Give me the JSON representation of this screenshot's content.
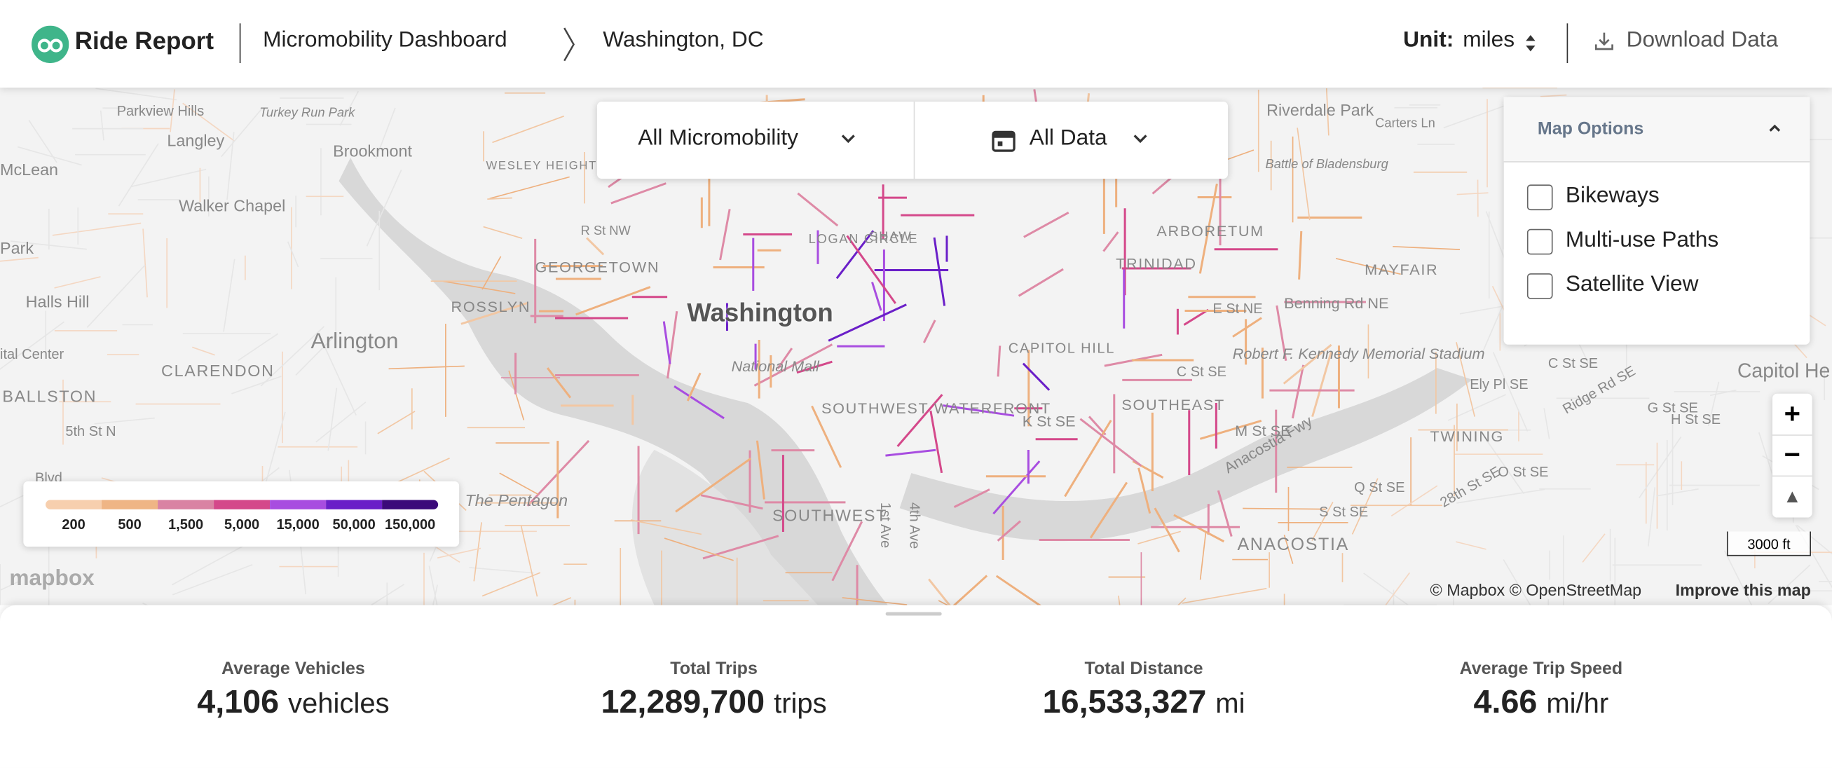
{
  "header": {
    "brand": "Ride Report",
    "crumbs": [
      "Micromobility Dashboard",
      "Washington, DC"
    ],
    "unit_label": "Unit:",
    "unit_value": "miles",
    "download": "Download Data"
  },
  "filters": [
    "All Micromobility",
    "All Data"
  ],
  "map_options": {
    "title": "Map Options",
    "options": [
      "Bikeways",
      "Multi-use Paths",
      "Satellite View"
    ]
  },
  "legend": {
    "colors": [
      "#f7cfae",
      "#efb585",
      "#d983a3",
      "#d4488a",
      "#a84de0",
      "#6a1fc8",
      "#3b0a7a"
    ],
    "labels": [
      "200",
      "500",
      "1,500",
      "5,000",
      "15,000",
      "50,000",
      "150,000"
    ]
  },
  "map_labels": [
    "Parkview Hills",
    "Turkey Run Park",
    "Langley",
    "McLean",
    "Brookmont",
    "Walker Chapel",
    "Park",
    "Halls Hill",
    "Arlington",
    "CLARENDON",
    "BALLSTON",
    "5th St N",
    "Blvd",
    "ital Center",
    "The Pentagon",
    "WESLEY HEIGHTS",
    "GEORGETOWN",
    "ROSSLYN",
    "R St NW",
    "LOGAN CIRCLE",
    "SHAW",
    "Washington",
    "National Mall",
    "SOUTHWEST WATERFRONT",
    "SOUTHWEST",
    "1st Ave",
    "4th Ave",
    "CAPITOL HILL",
    "SOUTHEAST",
    "K St SE",
    "C St SE",
    "E St NE",
    "TRINIDAD",
    "ARBORETUM",
    "Riverdale Park",
    "Carters Ln",
    "Battle of Bladensburg",
    "MAYFAIR",
    "Benning Rd NE",
    "Robert F. Kennedy Memorial Stadium",
    "M St SE",
    "Anacostia Fwy",
    "ANACOSTIA",
    "Q St SE",
    "S St SE",
    "28th St SE",
    "O St SE",
    "TWINING",
    "Ely Pl SE",
    "G St SE",
    "H St SE",
    "Ridge Rd SE",
    "Capitol He",
    "C St SE"
  ],
  "map_controls": {
    "scale": "3000 ft",
    "attribution": "© Mapbox © OpenStreetMap",
    "improve": "Improve this map",
    "logo": "mapbox"
  },
  "stats": [
    {
      "label": "Average Vehicles",
      "value": "4,106",
      "unit": "vehicles"
    },
    {
      "label": "Total Trips",
      "value": "12,289,700",
      "unit": "trips"
    },
    {
      "label": "Total Distance",
      "value": "16,533,327",
      "unit": "mi"
    },
    {
      "label": "Average Trip Speed",
      "value": "4.66",
      "unit": "mi/hr"
    }
  ]
}
